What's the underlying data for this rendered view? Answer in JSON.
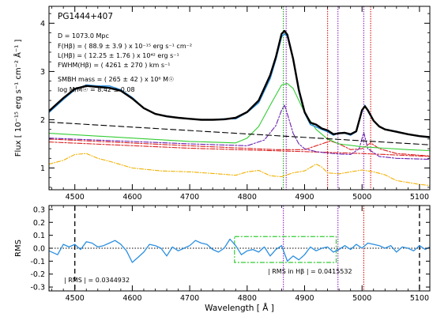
{
  "chart_data": [
    {
      "type": "line",
      "title": "PG1444+407",
      "xlabel": "",
      "ylabel": "Flux [ 10⁻¹⁵ erg s⁻¹ cm⁻² Å⁻¹ ]",
      "xlim": [
        4455,
        5118
      ],
      "ylim": [
        0.55,
        4.35
      ],
      "x_ticks": [
        "4500",
        "4600",
        "4700",
        "4800",
        "4900",
        "5000",
        "5100"
      ],
      "y_ticks": [
        "1",
        "2",
        "3",
        "4"
      ],
      "annotations": [
        "D = 1073.0 Mpc",
        "F(Hβ) = (   88.9 ±   3.9 ) x 10⁻¹⁵ erg s⁻¹ cm⁻²",
        "L(Hβ) = (  12.25 ±  1.76 ) x 10⁴² erg s⁻¹",
        "FWHM(Hβ) = (  4261 ±   270 ) km s⁻¹",
        "SMBH mass = (  265 ±   42 ) x 10⁶ M☉",
        "log M/M☉ =   8.42 ±  0.08"
      ],
      "vlines": [
        {
          "x": 4863,
          "color": "#22aa22"
        },
        {
          "x": 4868,
          "color": "#9933cc"
        },
        {
          "x": 4940,
          "color": "#dd2222"
        },
        {
          "x": 4958,
          "color": "#9933cc"
        },
        {
          "x": 5003,
          "color": "#9933cc"
        },
        {
          "x": 5015,
          "color": "#dd2222"
        }
      ],
      "series": [
        {
          "kind": "observed",
          "color": "#2b8fe0",
          "x": [
            4455,
            4480,
            4500,
            4520,
            4540,
            4560,
            4580,
            4600,
            4620,
            4640,
            4660,
            4680,
            4700,
            4720,
            4740,
            4760,
            4780,
            4800,
            4820,
            4840,
            4850,
            4860,
            4865,
            4870,
            4880,
            4890,
            4900,
            4910,
            4920,
            4930,
            4940,
            4950,
            4960,
            4970,
            4980,
            4990,
            5000,
            5005,
            5010,
            5020,
            5030,
            5040,
            5060,
            5080,
            5100,
            5118
          ],
          "y": [
            2.15,
            2.42,
            2.62,
            2.72,
            2.7,
            2.7,
            2.62,
            2.46,
            2.24,
            2.12,
            2.08,
            2.04,
            2.02,
            2.0,
            2.0,
            2.02,
            2.02,
            2.15,
            2.35,
            2.85,
            3.25,
            3.72,
            3.78,
            3.72,
            3.25,
            2.58,
            2.14,
            1.9,
            1.85,
            1.8,
            1.75,
            1.68,
            1.73,
            1.72,
            1.68,
            1.75,
            2.18,
            2.3,
            2.18,
            1.98,
            1.86,
            1.8,
            1.76,
            1.7,
            1.66,
            1.63
          ]
        },
        {
          "kind": "model",
          "color": "#000000",
          "x": [
            4455,
            4480,
            4500,
            4520,
            4540,
            4560,
            4580,
            4600,
            4620,
            4640,
            4660,
            4680,
            4700,
            4720,
            4740,
            4760,
            4780,
            4800,
            4820,
            4840,
            4850,
            4860,
            4865,
            4870,
            4880,
            4890,
            4900,
            4910,
            4920,
            4930,
            4940,
            4950,
            4960,
            4970,
            4980,
            4990,
            5000,
            5005,
            5010,
            5020,
            5030,
            5040,
            5060,
            5080,
            5100,
            5118
          ],
          "y": [
            2.18,
            2.45,
            2.64,
            2.7,
            2.68,
            2.66,
            2.6,
            2.44,
            2.24,
            2.12,
            2.07,
            2.04,
            2.02,
            2.0,
            2.0,
            2.01,
            2.04,
            2.16,
            2.4,
            2.92,
            3.3,
            3.78,
            3.84,
            3.76,
            3.26,
            2.62,
            2.16,
            1.94,
            1.9,
            1.82,
            1.78,
            1.7,
            1.72,
            1.73,
            1.7,
            1.76,
            2.2,
            2.28,
            2.2,
            1.98,
            1.86,
            1.8,
            1.75,
            1.7,
            1.66,
            1.64
          ]
        },
        {
          "kind": "continuum",
          "color": "#000000",
          "dash": "7,4",
          "x": [
            4455,
            5118
          ],
          "y": [
            1.95,
            1.48
          ]
        },
        {
          "kind": "broad-hbeta",
          "color": "#33cc33",
          "x": [
            4455,
            4700,
            4780,
            4800,
            4820,
            4840,
            4860,
            4870,
            4880,
            4900,
            4920,
            4940,
            4960,
            5000,
            5040,
            5080,
            5118
          ],
          "y": [
            1.72,
            1.55,
            1.52,
            1.62,
            1.86,
            2.3,
            2.72,
            2.75,
            2.65,
            2.15,
            1.8,
            1.6,
            1.5,
            1.44,
            1.41,
            1.38,
            1.36
          ]
        },
        {
          "kind": "narrow-component",
          "color": "#6a22b0",
          "dash": "6,2,2,2",
          "x": [
            4455,
            4700,
            4800,
            4830,
            4850,
            4860,
            4865,
            4870,
            4880,
            4890,
            4900,
            4920,
            4940,
            4960,
            4980,
            4995,
            5003,
            5010,
            5030,
            5060,
            5118
          ],
          "y": [
            1.62,
            1.5,
            1.46,
            1.58,
            1.88,
            2.2,
            2.3,
            2.12,
            1.72,
            1.5,
            1.4,
            1.34,
            1.31,
            1.29,
            1.28,
            1.4,
            1.74,
            1.4,
            1.24,
            1.2,
            1.18
          ]
        },
        {
          "kind": "fe-ii-1",
          "color": "#dd2222",
          "dash": "6,2,2,2",
          "x": [
            4455,
            4700,
            4850,
            4900,
            4930,
            4945,
            4960,
            4980,
            5000,
            5015,
            5030,
            5060,
            5118
          ],
          "y": [
            1.6,
            1.46,
            1.38,
            1.38,
            1.5,
            1.56,
            1.5,
            1.38,
            1.4,
            1.52,
            1.4,
            1.3,
            1.25
          ]
        },
        {
          "kind": "fe-ii-2",
          "color": "#dd2222",
          "dash": "6,2,2,2",
          "x": [
            4455,
            4700,
            4900,
            5000,
            5118
          ],
          "y": [
            1.54,
            1.41,
            1.34,
            1.3,
            1.24
          ]
        },
        {
          "kind": "fe-ii-template",
          "color": "#f0b000",
          "dash": "5,2,1,2",
          "x": [
            4455,
            4480,
            4500,
            4520,
            4540,
            4560,
            4600,
            4650,
            4700,
            4750,
            4780,
            4800,
            4820,
            4840,
            4860,
            4880,
            4900,
            4920,
            4930,
            4940,
            4960,
            4980,
            5000,
            5020,
            5040,
            5060,
            5080,
            5100,
            5118
          ],
          "y": [
            1.08,
            1.16,
            1.28,
            1.3,
            1.2,
            1.14,
            1.0,
            0.94,
            0.92,
            0.88,
            0.85,
            0.92,
            0.95,
            0.84,
            0.82,
            0.9,
            0.94,
            1.08,
            1.02,
            0.9,
            0.88,
            0.92,
            0.96,
            0.92,
            0.86,
            0.74,
            0.7,
            0.66,
            0.64
          ]
        }
      ]
    },
    {
      "type": "line",
      "title": "",
      "xlabel": "Wavelength [ Å ]",
      "ylabel": "RMS",
      "xlim": [
        4455,
        5118
      ],
      "ylim": [
        -0.33,
        0.33
      ],
      "x_ticks": [
        "4500",
        "4600",
        "4700",
        "4800",
        "4900",
        "5000",
        "5100"
      ],
      "y_ticks": [
        "0.3",
        "0.2",
        "0.1",
        "0.0",
        "-0.1",
        "-0.2",
        "-0.3"
      ],
      "annotations": {
        "rms_total": "| RMS | =   0.0344932",
        "rms_hbeta": "| RMS in Hβ | =   0.0415532"
      },
      "window": {
        "x0": 4778,
        "x1": 4955,
        "y0": -0.11,
        "y1": 0.09,
        "color": "#33cc33"
      },
      "vlines": [
        {
          "x": 4500,
          "color": "#000000"
        },
        {
          "x": 5100,
          "color": "#000000"
        },
        {
          "x": 4863,
          "color": "#9933cc"
        },
        {
          "x": 4958,
          "color": "#9933cc"
        },
        {
          "x": 5003,
          "color": "#dd2222"
        }
      ],
      "series": [
        {
          "kind": "residual",
          "color": "#2b8fe0",
          "x": [
            4455,
            4470,
            4480,
            4490,
            4500,
            4510,
            4520,
            4530,
            4540,
            4550,
            4560,
            4570,
            4580,
            4590,
            4600,
            4610,
            4620,
            4630,
            4640,
            4650,
            4660,
            4670,
            4680,
            4690,
            4700,
            4710,
            4720,
            4730,
            4740,
            4750,
            4760,
            4770,
            4780,
            4790,
            4800,
            4810,
            4820,
            4830,
            4840,
            4850,
            4860,
            4870,
            4880,
            4890,
            4900,
            4910,
            4920,
            4930,
            4940,
            4950,
            4960,
            4970,
            4980,
            4990,
            5000,
            5010,
            5020,
            5030,
            5040,
            5050,
            5060,
            5070,
            5080,
            5090,
            5100,
            5110,
            5118
          ],
          "y": [
            -0.02,
            -0.05,
            0.03,
            0.01,
            0.03,
            -0.01,
            0.05,
            0.04,
            0.01,
            0.02,
            0.04,
            0.06,
            0.03,
            -0.02,
            -0.11,
            -0.07,
            -0.03,
            0.03,
            0.02,
            0.0,
            -0.06,
            0.01,
            -0.02,
            0.0,
            0.02,
            0.06,
            0.04,
            0.03,
            -0.01,
            -0.03,
            0.0,
            0.07,
            0.02,
            -0.05,
            -0.02,
            -0.01,
            -0.03,
            0.01,
            -0.06,
            -0.01,
            0.02,
            -0.1,
            -0.06,
            -0.09,
            -0.05,
            0.01,
            -0.02,
            0.0,
            0.01,
            -0.03,
            -0.01,
            0.02,
            -0.01,
            0.03,
            0.0,
            0.04,
            0.03,
            0.02,
            0.0,
            0.02,
            -0.03,
            0.01,
            0.0,
            -0.02,
            0.02,
            -0.01,
            0.01
          ]
        }
      ]
    }
  ]
}
